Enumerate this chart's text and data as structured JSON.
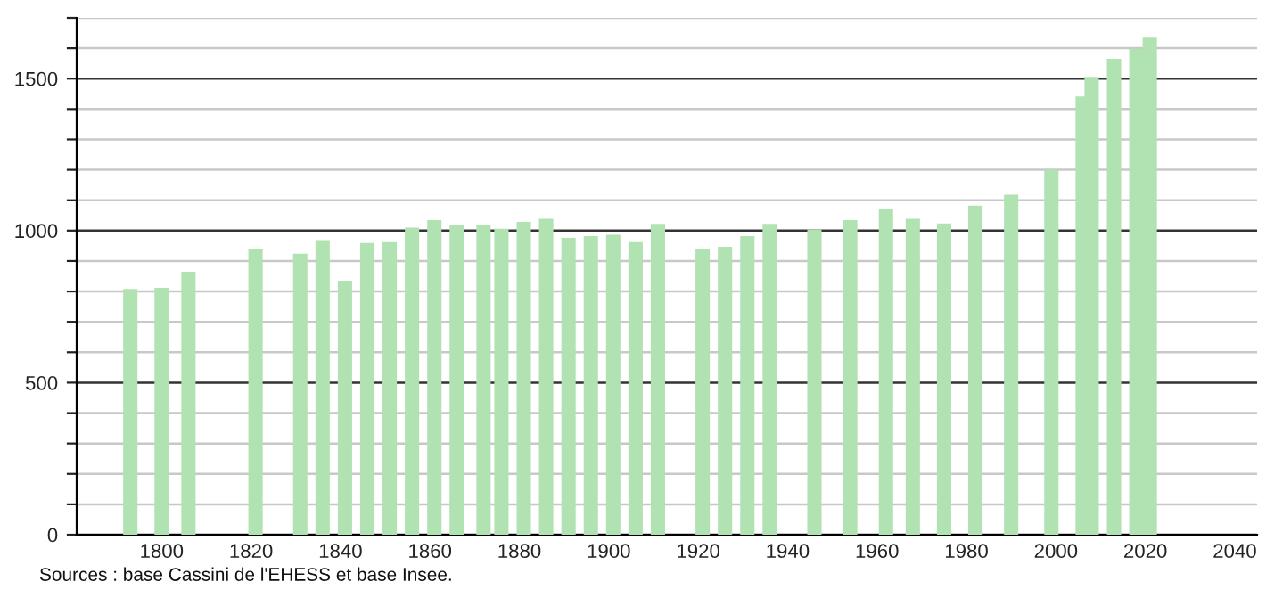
{
  "chart_data": {
    "type": "bar",
    "x": [
      1793,
      1800,
      1806,
      1821,
      1831,
      1836,
      1841,
      1846,
      1851,
      1856,
      1861,
      1866,
      1872,
      1876,
      1881,
      1886,
      1891,
      1896,
      1901,
      1906,
      1911,
      1921,
      1926,
      1931,
      1936,
      1946,
      1954,
      1962,
      1968,
      1975,
      1982,
      1990,
      1999,
      2006,
      2008,
      2013,
      2018,
      2021
    ],
    "values": [
      808,
      812,
      865,
      941,
      924,
      969,
      835,
      959,
      965,
      1010,
      1035,
      1018,
      1018,
      1006,
      1029,
      1039,
      976,
      982,
      986,
      965,
      1022,
      941,
      947,
      982,
      1022,
      1004,
      1035,
      1071,
      1039,
      1024,
      1082,
      1118,
      1200,
      1441,
      1506,
      1565,
      1598,
      1635
    ],
    "color": "#b1e2b1",
    "xlim": [
      1781,
      2045
    ],
    "xticks": [
      1800,
      1820,
      1840,
      1860,
      1880,
      1900,
      1920,
      1940,
      1960,
      1980,
      2000,
      2020,
      2040
    ],
    "ylim": [
      0,
      1700
    ],
    "yticks": [
      0,
      {
        "value": 100,
        "label": null
      },
      {
        "value": 200,
        "label": null
      },
      {
        "value": 300,
        "label": null
      },
      {
        "value": 400,
        "label": null
      },
      500,
      {
        "value": 600,
        "label": null
      },
      {
        "value": 700,
        "label": null
      },
      {
        "value": 800,
        "label": null
      },
      {
        "value": 900,
        "label": null
      },
      1000,
      {
        "value": 1100,
        "label": null
      },
      {
        "value": 1200,
        "label": null
      },
      {
        "value": 1300,
        "label": null
      },
      {
        "value": 1400,
        "label": null
      },
      1500,
      {
        "value": 1600,
        "label": null
      },
      {
        "value": 1700,
        "label": null
      }
    ],
    "grid": "y",
    "annotations": [
      "Sources : base Cassini de l'EHESS et base Insee."
    ]
  }
}
